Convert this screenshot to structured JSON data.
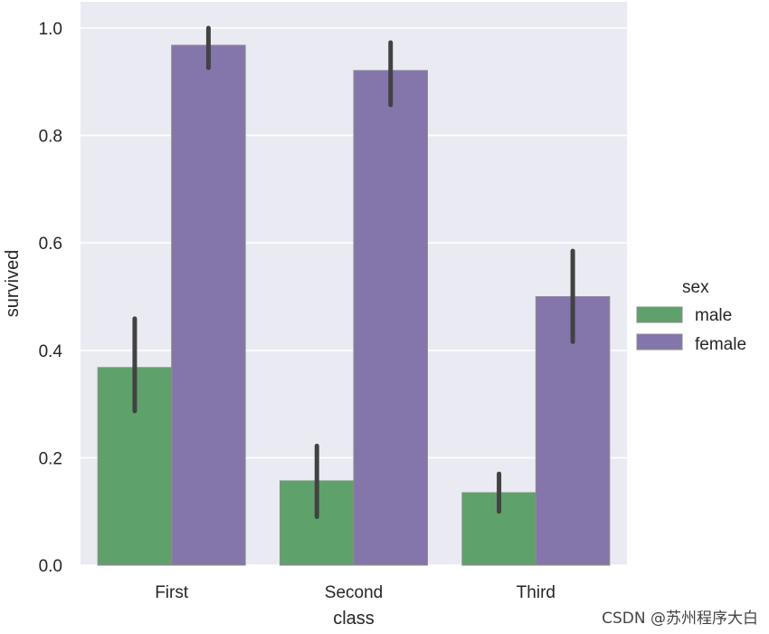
{
  "chart_data": {
    "type": "bar",
    "categories": [
      "First",
      "Second",
      "Third"
    ],
    "series": [
      {
        "name": "male",
        "color": "#5fa16b",
        "values": [
          0.368,
          0.157,
          0.135
        ],
        "ci": [
          [
            0.287,
            0.459
          ],
          [
            0.09,
            0.222
          ],
          [
            0.1,
            0.17
          ]
        ]
      },
      {
        "name": "female",
        "color": "#8475aa",
        "values": [
          0.968,
          0.921,
          0.5
        ],
        "ci": [
          [
            0.926,
            1.0
          ],
          [
            0.857,
            0.973
          ],
          [
            0.416,
            0.585
          ]
        ]
      }
    ],
    "xlabel": "class",
    "ylabel": "survived",
    "ylim": [
      0,
      1.05
    ],
    "yticks": [
      "0.0",
      "0.2",
      "0.4",
      "0.6",
      "0.8",
      "1.0"
    ],
    "grid": true,
    "legend": {
      "title": "sex",
      "placement": "right"
    }
  },
  "watermark": "CSDN @苏州程序大白"
}
